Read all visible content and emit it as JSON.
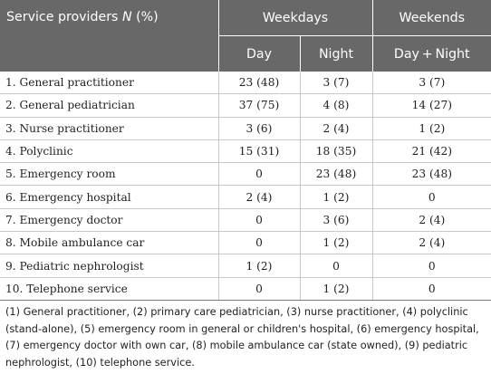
{
  "table": {
    "header": {
      "label_text": "Service providers ",
      "label_italic": "N",
      "label_suffix": " (%)",
      "weekdays": "Weekdays",
      "weekends": "Weekends",
      "day": "Day",
      "night": "Night",
      "day_night": "Day + Night"
    },
    "rows": [
      {
        "name": "1. General practitioner",
        "day": "23 (48)",
        "night": "3 (7)",
        "weekend": "3 (7)"
      },
      {
        "name": "2. General pediatrician",
        "day": "37 (75)",
        "night": "4 (8)",
        "weekend": "14 (27)"
      },
      {
        "name": "3. Nurse practitioner",
        "day": "3 (6)",
        "night": "2 (4)",
        "weekend": "1 (2)"
      },
      {
        "name": "4. Polyclinic",
        "day": "15 (31)",
        "night": "18 (35)",
        "weekend": "21 (42)"
      },
      {
        "name": "5. Emergency room",
        "day": "0",
        "night": "23 (48)",
        "weekend": "23 (48)"
      },
      {
        "name": "6. Emergency hospital",
        "day": "2 (4)",
        "night": "1 (2)",
        "weekend": "0"
      },
      {
        "name": "7. Emergency doctor",
        "day": "0",
        "night": "3 (6)",
        "weekend": "2 (4)"
      },
      {
        "name": "8. Mobile ambulance car",
        "day": "0",
        "night": "1 (2)",
        "weekend": "2 (4)"
      },
      {
        "name": "9. Pediatric nephrologist",
        "day": "1 (2)",
        "night": "0",
        "weekend": "0"
      },
      {
        "name": "10. Telephone service",
        "day": "0",
        "night": "1 (2)",
        "weekend": "0"
      }
    ]
  },
  "footnote": "(1) General practitioner, (2) primary care pediatrician, (3) nurse practitioner, (4) polyclinic (stand-alone), (5) emergency room in general or children's hospital, (6) emergency hospital, (7) emergency doctor with own car, (8) mobile ambulance car (state owned), (9) pediatric nephrologist, (10) telephone service."
}
